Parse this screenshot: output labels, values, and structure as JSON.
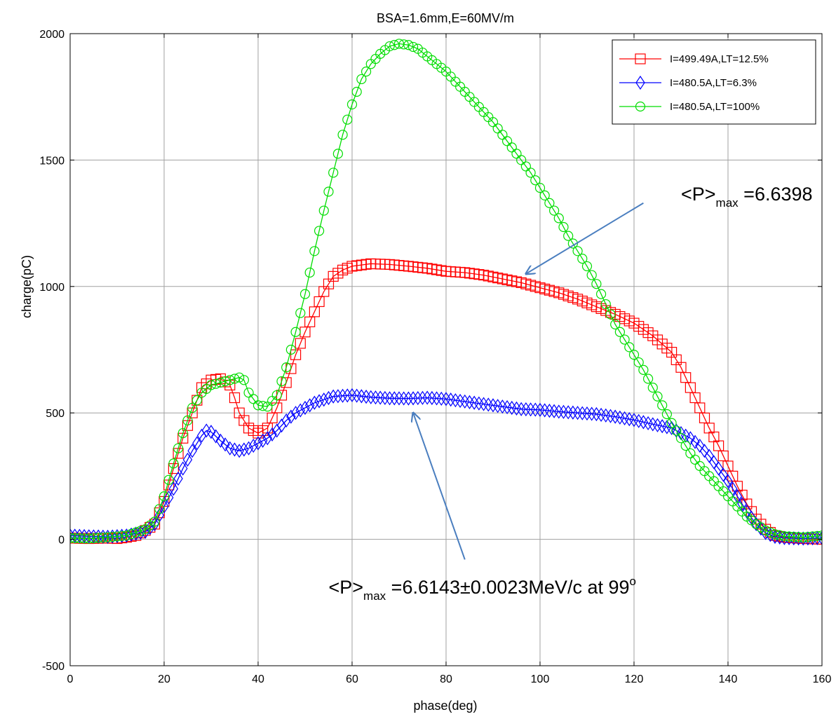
{
  "chart_data": {
    "type": "line",
    "title": "BSA=1.6mm,E=60MV/m",
    "xlabel": "phase(deg)",
    "ylabel": "charge(pC)",
    "xlim": [
      0,
      160
    ],
    "ylim": [
      -500,
      2000
    ],
    "xticks": [
      "0",
      "20",
      "40",
      "60",
      "80",
      "100",
      "120",
      "140",
      "160"
    ],
    "yticks": [
      "-500",
      "0",
      "500",
      "1000",
      "1500",
      "2000"
    ],
    "grid": true,
    "legend": "top-right",
    "series": [
      {
        "name": "I=499.49A,LT=12.5%",
        "color": "#ff0000",
        "marker": "square",
        "points": [
          [
            0,
            5
          ],
          [
            4,
            3
          ],
          [
            8,
            5
          ],
          [
            10,
            3
          ],
          [
            12,
            8
          ],
          [
            14,
            15
          ],
          [
            16,
            35
          ],
          [
            18,
            60
          ],
          [
            20,
            150
          ],
          [
            22,
            280
          ],
          [
            24,
            400
          ],
          [
            26,
            500
          ],
          [
            28,
            600
          ],
          [
            30,
            630
          ],
          [
            32,
            635
          ],
          [
            34,
            610
          ],
          [
            35,
            560
          ],
          [
            36,
            500
          ],
          [
            38,
            440
          ],
          [
            40,
            420
          ],
          [
            42,
            440
          ],
          [
            44,
            520
          ],
          [
            46,
            620
          ],
          [
            48,
            730
          ],
          [
            50,
            820
          ],
          [
            52,
            900
          ],
          [
            54,
            980
          ],
          [
            56,
            1040
          ],
          [
            58,
            1065
          ],
          [
            60,
            1080
          ],
          [
            64,
            1090
          ],
          [
            68,
            1087
          ],
          [
            72,
            1080
          ],
          [
            76,
            1072
          ],
          [
            80,
            1060
          ],
          [
            84,
            1055
          ],
          [
            88,
            1045
          ],
          [
            92,
            1030
          ],
          [
            96,
            1015
          ],
          [
            100,
            995
          ],
          [
            104,
            975
          ],
          [
            108,
            950
          ],
          [
            112,
            920
          ],
          [
            116,
            890
          ],
          [
            120,
            855
          ],
          [
            124,
            805
          ],
          [
            128,
            740
          ],
          [
            130,
            680
          ],
          [
            132,
            600
          ],
          [
            134,
            520
          ],
          [
            136,
            440
          ],
          [
            138,
            370
          ],
          [
            140,
            290
          ],
          [
            142,
            210
          ],
          [
            144,
            140
          ],
          [
            146,
            80
          ],
          [
            148,
            40
          ],
          [
            150,
            15
          ],
          [
            152,
            8
          ],
          [
            156,
            3
          ],
          [
            160,
            0
          ]
        ]
      },
      {
        "name": "I=480.5A,LT=6.3%",
        "color": "#0000ff",
        "marker": "diamond",
        "points": [
          [
            0,
            15
          ],
          [
            4,
            12
          ],
          [
            8,
            10
          ],
          [
            12,
            15
          ],
          [
            16,
            30
          ],
          [
            18,
            60
          ],
          [
            20,
            130
          ],
          [
            22,
            200
          ],
          [
            24,
            280
          ],
          [
            26,
            350
          ],
          [
            28,
            410
          ],
          [
            29,
            430
          ],
          [
            30,
            425
          ],
          [
            32,
            390
          ],
          [
            34,
            360
          ],
          [
            36,
            350
          ],
          [
            38,
            360
          ],
          [
            40,
            380
          ],
          [
            42,
            400
          ],
          [
            44,
            430
          ],
          [
            46,
            470
          ],
          [
            48,
            500
          ],
          [
            50,
            520
          ],
          [
            52,
            540
          ],
          [
            56,
            565
          ],
          [
            60,
            570
          ],
          [
            64,
            562
          ],
          [
            68,
            558
          ],
          [
            72,
            557
          ],
          [
            76,
            560
          ],
          [
            80,
            555
          ],
          [
            84,
            545
          ],
          [
            88,
            535
          ],
          [
            92,
            525
          ],
          [
            96,
            515
          ],
          [
            100,
            512
          ],
          [
            104,
            505
          ],
          [
            108,
            500
          ],
          [
            112,
            495
          ],
          [
            116,
            485
          ],
          [
            120,
            472
          ],
          [
            124,
            455
          ],
          [
            128,
            440
          ],
          [
            130,
            420
          ],
          [
            132,
            400
          ],
          [
            134,
            370
          ],
          [
            136,
            330
          ],
          [
            138,
            280
          ],
          [
            140,
            230
          ],
          [
            142,
            170
          ],
          [
            144,
            110
          ],
          [
            146,
            60
          ],
          [
            148,
            25
          ],
          [
            150,
            10
          ],
          [
            152,
            5
          ],
          [
            156,
            3
          ],
          [
            160,
            5
          ]
        ]
      },
      {
        "name": "I=480.5A,LT=100%",
        "color": "#00dd00",
        "marker": "circle",
        "points": [
          [
            0,
            5
          ],
          [
            4,
            3
          ],
          [
            8,
            8
          ],
          [
            12,
            15
          ],
          [
            16,
            40
          ],
          [
            18,
            70
          ],
          [
            20,
            170
          ],
          [
            22,
            300
          ],
          [
            24,
            420
          ],
          [
            26,
            520
          ],
          [
            28,
            580
          ],
          [
            30,
            610
          ],
          [
            32,
            620
          ],
          [
            34,
            630
          ],
          [
            36,
            640
          ],
          [
            37,
            630
          ],
          [
            38,
            580
          ],
          [
            40,
            530
          ],
          [
            42,
            525
          ],
          [
            44,
            570
          ],
          [
            46,
            680
          ],
          [
            48,
            820
          ],
          [
            50,
            970
          ],
          [
            52,
            1140
          ],
          [
            54,
            1300
          ],
          [
            56,
            1450
          ],
          [
            58,
            1600
          ],
          [
            60,
            1720
          ],
          [
            62,
            1820
          ],
          [
            64,
            1880
          ],
          [
            66,
            1920
          ],
          [
            68,
            1950
          ],
          [
            70,
            1960
          ],
          [
            72,
            1955
          ],
          [
            74,
            1940
          ],
          [
            76,
            1910
          ],
          [
            78,
            1880
          ],
          [
            80,
            1850
          ],
          [
            82,
            1810
          ],
          [
            84,
            1770
          ],
          [
            86,
            1730
          ],
          [
            88,
            1690
          ],
          [
            90,
            1650
          ],
          [
            92,
            1600
          ],
          [
            94,
            1550
          ],
          [
            96,
            1500
          ],
          [
            98,
            1450
          ],
          [
            100,
            1390
          ],
          [
            102,
            1330
          ],
          [
            104,
            1270
          ],
          [
            106,
            1200
          ],
          [
            108,
            1140
          ],
          [
            110,
            1080
          ],
          [
            112,
            1010
          ],
          [
            114,
            930
          ],
          [
            116,
            850
          ],
          [
            118,
            790
          ],
          [
            120,
            730
          ],
          [
            122,
            670
          ],
          [
            124,
            600
          ],
          [
            126,
            530
          ],
          [
            128,
            460
          ],
          [
            130,
            400
          ],
          [
            132,
            340
          ],
          [
            134,
            290
          ],
          [
            136,
            250
          ],
          [
            138,
            210
          ],
          [
            140,
            170
          ],
          [
            142,
            130
          ],
          [
            144,
            90
          ],
          [
            146,
            60
          ],
          [
            148,
            35
          ],
          [
            150,
            20
          ],
          [
            152,
            12
          ],
          [
            156,
            8
          ],
          [
            160,
            15
          ]
        ]
      }
    ],
    "annotations": [
      {
        "name": "annotation-red",
        "prefix": "<P>",
        "sub": "max",
        "text": " =6.6398",
        "sup": "",
        "tail": "",
        "text_x": 130,
        "text_y": 1340,
        "arrow_from": [
          122,
          1330
        ],
        "arrow_to": [
          97,
          1050
        ],
        "arrow_color": "#4a7ebf"
      },
      {
        "name": "annotation-blue",
        "prefix": "<P>",
        "sub": "max",
        "text": " =6.6143±0.0023MeV/c at 99",
        "sup": "o",
        "tail": "",
        "text_x": 55,
        "text_y": -215,
        "arrow_from": [
          84,
          -80
        ],
        "arrow_to": [
          73,
          500
        ],
        "arrow_color": "#4a7ebf"
      }
    ]
  }
}
